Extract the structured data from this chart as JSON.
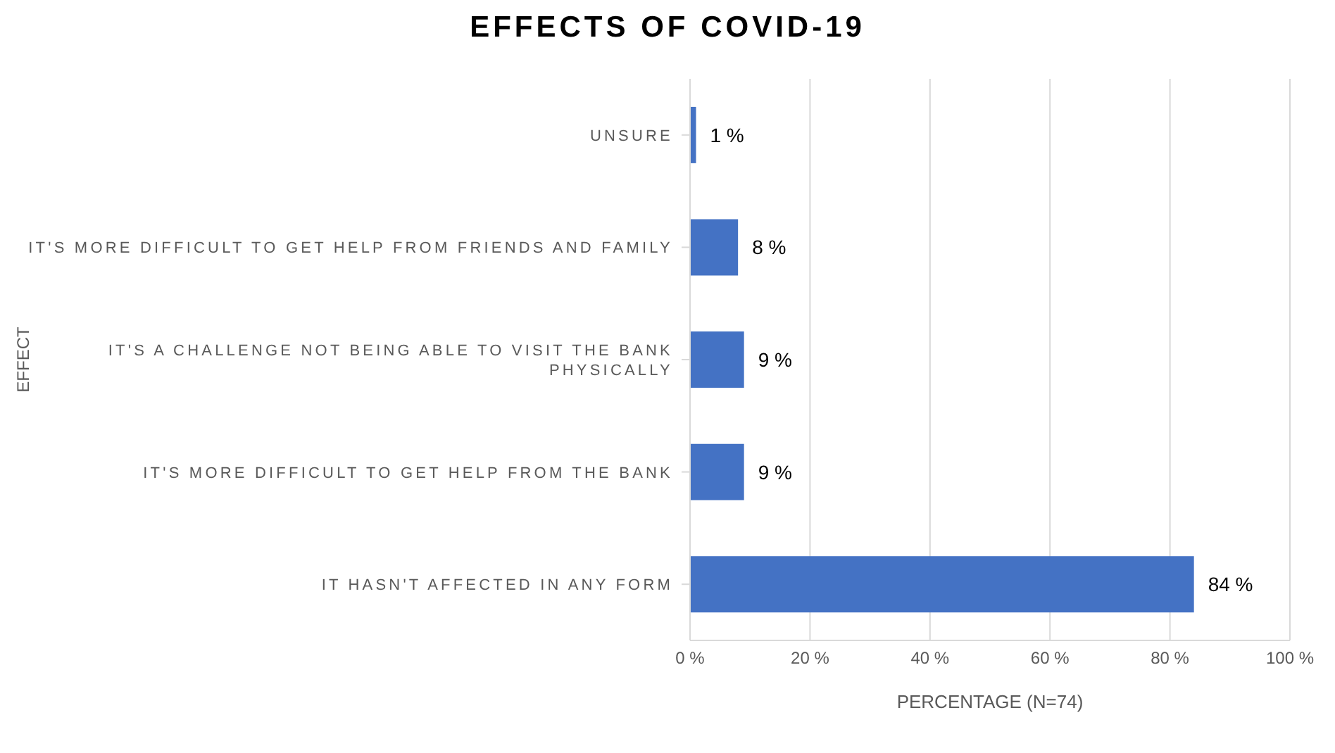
{
  "chart_data": {
    "type": "bar",
    "orientation": "horizontal",
    "title": "EFFECTS OF COVID-19",
    "xlabel": "PERCENTAGE (N=74)",
    "ylabel": "EFFECT",
    "categories": [
      "UNSURE",
      "IT'S MORE DIFFICULT TO GET HELP FROM FRIENDS AND FAMILY",
      "IT'S A CHALLENGE NOT BEING ABLE TO VISIT THE BANK PHYSICALLY",
      "IT'S MORE DIFFICULT TO GET HELP FROM THE BANK",
      "IT HASN'T AFFECTED IN ANY FORM"
    ],
    "values": [
      1,
      8,
      9,
      9,
      84
    ],
    "color": "#4472c4",
    "value_labels": [
      "1 %",
      "8 %",
      "9 %",
      "9 %",
      "84 %"
    ],
    "xlim": [
      0,
      100
    ],
    "xticks": [
      {
        "value": 0,
        "label": "0 %"
      },
      {
        "value": 20,
        "label": "20 %"
      },
      {
        "value": 40,
        "label": "40 %"
      },
      {
        "value": 60,
        "label": "60 %"
      },
      {
        "value": 80,
        "label": "80 %"
      },
      {
        "value": 100,
        "label": "100 %"
      }
    ],
    "grid": "x"
  }
}
